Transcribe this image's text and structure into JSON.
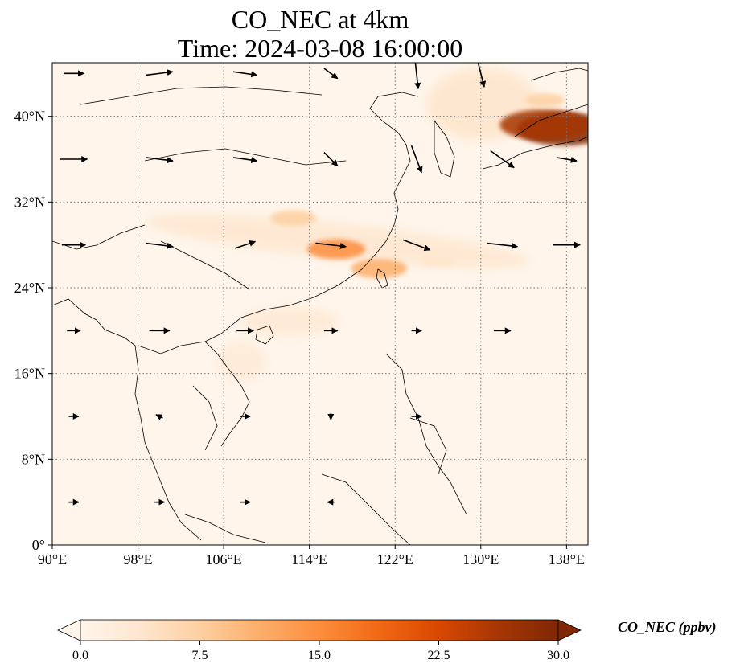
{
  "title": {
    "line1": "CO_NEC at 4km",
    "line2": "Time: 2024-03-08 16:00:00"
  },
  "map": {
    "lon_range": [
      90,
      140
    ],
    "lat_range": [
      0,
      45
    ],
    "lon_ticks": [
      {
        "value": 90,
        "label": "90°E"
      },
      {
        "value": 98,
        "label": "98°E"
      },
      {
        "value": 106,
        "label": "106°E"
      },
      {
        "value": 114,
        "label": "114°E"
      },
      {
        "value": 122,
        "label": "122°E"
      },
      {
        "value": 130,
        "label": "130°E"
      },
      {
        "value": 138,
        "label": "138°E"
      }
    ],
    "lat_ticks": [
      {
        "value": 0,
        "label": "0°"
      },
      {
        "value": 8,
        "label": "8°N"
      },
      {
        "value": 16,
        "label": "16°N"
      },
      {
        "value": 24,
        "label": "24°N"
      },
      {
        "value": 32,
        "label": "32°N"
      },
      {
        "value": 40,
        "label": "40°N"
      }
    ],
    "gridlines": true
  },
  "colorbar": {
    "label": "CO_NEC (ppbv)",
    "min": 0,
    "max": 30,
    "ticks": [
      "0.0",
      "7.5",
      "15.0",
      "22.5",
      "30.0"
    ],
    "colors": [
      "#fff5eb",
      "#fee6ce",
      "#fdd0a2",
      "#fdae6b",
      "#fd8d3c",
      "#f16913",
      "#d94801",
      "#a63603",
      "#7f2704"
    ],
    "extend": "both"
  },
  "concentration_plumes": [
    {
      "lon": 137.8,
      "lat": 38.8,
      "value": 30
    },
    {
      "lon": 136.0,
      "lat": 39.2,
      "value": 28
    },
    {
      "lon": 136.0,
      "lat": 41.5,
      "value": 6
    },
    {
      "lon": 116.5,
      "lat": 27.6,
      "value": 14
    },
    {
      "lon": 120.5,
      "lat": 25.8,
      "value": 13
    },
    {
      "lon": 112.5,
      "lat": 30.5,
      "value": 9
    },
    {
      "lon": 126.0,
      "lat": 26.5,
      "value": 5
    }
  ],
  "wind_field": {
    "description_units": "vector arrows",
    "samples": [
      {
        "lon": 92,
        "lat": 44,
        "u": 6,
        "v": 0
      },
      {
        "lon": 100,
        "lat": 44,
        "u": 8,
        "v": 1
      },
      {
        "lon": 108,
        "lat": 44,
        "u": 7,
        "v": -1
      },
      {
        "lon": 116,
        "lat": 44,
        "u": 4,
        "v": -3
      },
      {
        "lon": 124,
        "lat": 44,
        "u": 1,
        "v": -9
      },
      {
        "lon": 130,
        "lat": 44,
        "u": 2,
        "v": -8
      },
      {
        "lon": 92,
        "lat": 36,
        "u": 8,
        "v": 0
      },
      {
        "lon": 100,
        "lat": 36,
        "u": 8,
        "v": -1
      },
      {
        "lon": 108,
        "lat": 36,
        "u": 7,
        "v": -1
      },
      {
        "lon": 116,
        "lat": 36,
        "u": 4,
        "v": -4
      },
      {
        "lon": 124,
        "lat": 36,
        "u": 3,
        "v": -8
      },
      {
        "lon": 132,
        "lat": 36,
        "u": 7,
        "v": -5
      },
      {
        "lon": 138,
        "lat": 36,
        "u": 6,
        "v": -1
      },
      {
        "lon": 92,
        "lat": 28,
        "u": 7,
        "v": 0
      },
      {
        "lon": 100,
        "lat": 28,
        "u": 8,
        "v": -1
      },
      {
        "lon": 108,
        "lat": 28,
        "u": 6,
        "v": 2
      },
      {
        "lon": 116,
        "lat": 28,
        "u": 9,
        "v": -1
      },
      {
        "lon": 124,
        "lat": 28,
        "u": 8,
        "v": -3
      },
      {
        "lon": 132,
        "lat": 28,
        "u": 9,
        "v": -1
      },
      {
        "lon": 138,
        "lat": 28,
        "u": 8,
        "v": 0
      },
      {
        "lon": 92,
        "lat": 20,
        "u": 4,
        "v": 0
      },
      {
        "lon": 100,
        "lat": 20,
        "u": 6,
        "v": 0
      },
      {
        "lon": 108,
        "lat": 20,
        "u": 5,
        "v": 0
      },
      {
        "lon": 116,
        "lat": 20,
        "u": 4,
        "v": 0
      },
      {
        "lon": 124,
        "lat": 20,
        "u": 3,
        "v": 0
      },
      {
        "lon": 132,
        "lat": 20,
        "u": 5,
        "v": 0
      },
      {
        "lon": 92,
        "lat": 12,
        "u": 3,
        "v": 0
      },
      {
        "lon": 100,
        "lat": 12,
        "u": -2,
        "v": 1
      },
      {
        "lon": 108,
        "lat": 12,
        "u": 3,
        "v": 0
      },
      {
        "lon": 116,
        "lat": 12,
        "u": 0,
        "v": -2
      },
      {
        "lon": 124,
        "lat": 12,
        "u": 3,
        "v": 0
      },
      {
        "lon": 92,
        "lat": 4,
        "u": 3,
        "v": 0
      },
      {
        "lon": 100,
        "lat": 4,
        "u": 3,
        "v": 0
      },
      {
        "lon": 108,
        "lat": 4,
        "u": 3,
        "v": 0
      },
      {
        "lon": 116,
        "lat": 4,
        "u": -2,
        "v": 0
      }
    ]
  }
}
